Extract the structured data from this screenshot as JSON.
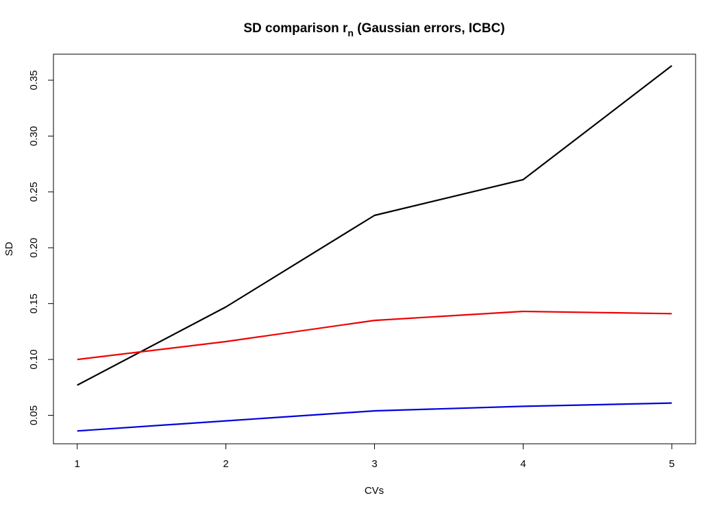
{
  "chart_data": {
    "type": "line",
    "title": {
      "prefix": "SD comparison r",
      "subscript": "n",
      "suffix": " (Gaussian errors, ICBC)"
    },
    "xlabel": "CVs",
    "ylabel": "SD",
    "x": [
      1,
      2,
      3,
      4,
      5
    ],
    "x_ticks": [
      "1",
      "2",
      "3",
      "4",
      "5"
    ],
    "y_ticks": [
      "0.05",
      "0.10",
      "0.15",
      "0.20",
      "0.25",
      "0.30",
      "0.35"
    ],
    "xlim": [
      0.84,
      5.16
    ],
    "ylim": [
      0.0245,
      0.3733
    ],
    "grid": false,
    "legend": "none",
    "series": [
      {
        "color": "#000000",
        "values": [
          0.077,
          0.147,
          0.229,
          0.261,
          0.363
        ]
      },
      {
        "color": "#ee0000",
        "values": [
          0.1,
          0.116,
          0.135,
          0.143,
          0.141
        ]
      },
      {
        "color": "#0000dd",
        "values": [
          0.036,
          0.045,
          0.054,
          0.058,
          0.061
        ]
      }
    ]
  }
}
